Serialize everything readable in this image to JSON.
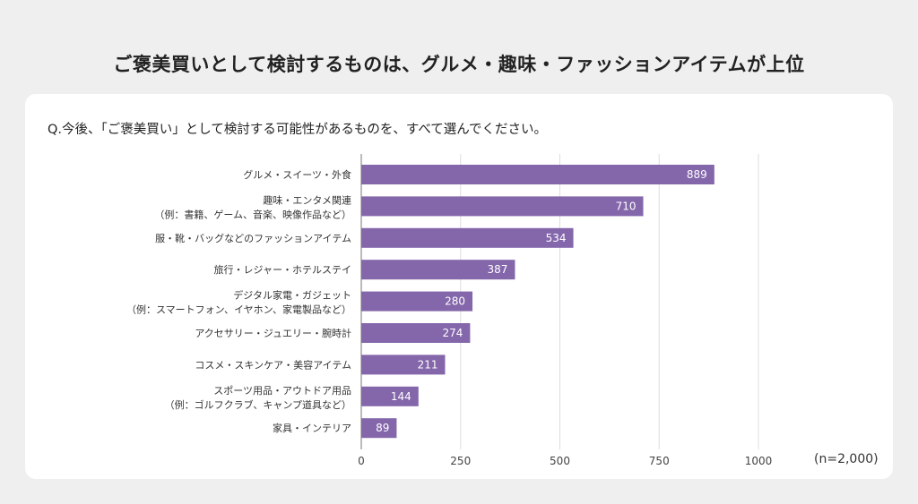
{
  "title": "ご褒美買いとして検討するものは、グルメ・趣味・ファッションアイテムが上位",
  "question": "Q.今後、「ご褒美買い」として検討する可能性があるものを、すべて選んでください。",
  "note": "(n=2,000)",
  "colors": {
    "bar": "#8466ab",
    "background": "#efefef",
    "card": "#ffffff",
    "grid": "#dddddd"
  },
  "chart_data": {
    "type": "bar",
    "orientation": "horizontal",
    "categories": [
      [
        "グルメ・スイーツ・外食"
      ],
      [
        "趣味・エンタメ関連",
        "（例：書籍、ゲーム、音楽、映像作品など）"
      ],
      [
        "服・靴・バッグなどのファッションアイテム"
      ],
      [
        "旅行・レジャー・ホテルステイ"
      ],
      [
        "デジタル家電・ガジェット",
        "（例：スマートフォン、イヤホン、家電製品など）"
      ],
      [
        "アクセサリー・ジュエリー・腕時計"
      ],
      [
        "コスメ・スキンケア・美容アイテム"
      ],
      [
        "スポーツ用品・アウトドア用品",
        "（例：ゴルフクラブ、キャンプ道具など）"
      ],
      [
        "家具・インテリア"
      ]
    ],
    "values": [
      889,
      710,
      534,
      387,
      280,
      274,
      211,
      144,
      89
    ],
    "xlim": [
      0,
      1000
    ],
    "xticks": [
      "0",
      "250",
      "500",
      "750",
      "1000"
    ],
    "grid": true,
    "data_labels": true
  }
}
